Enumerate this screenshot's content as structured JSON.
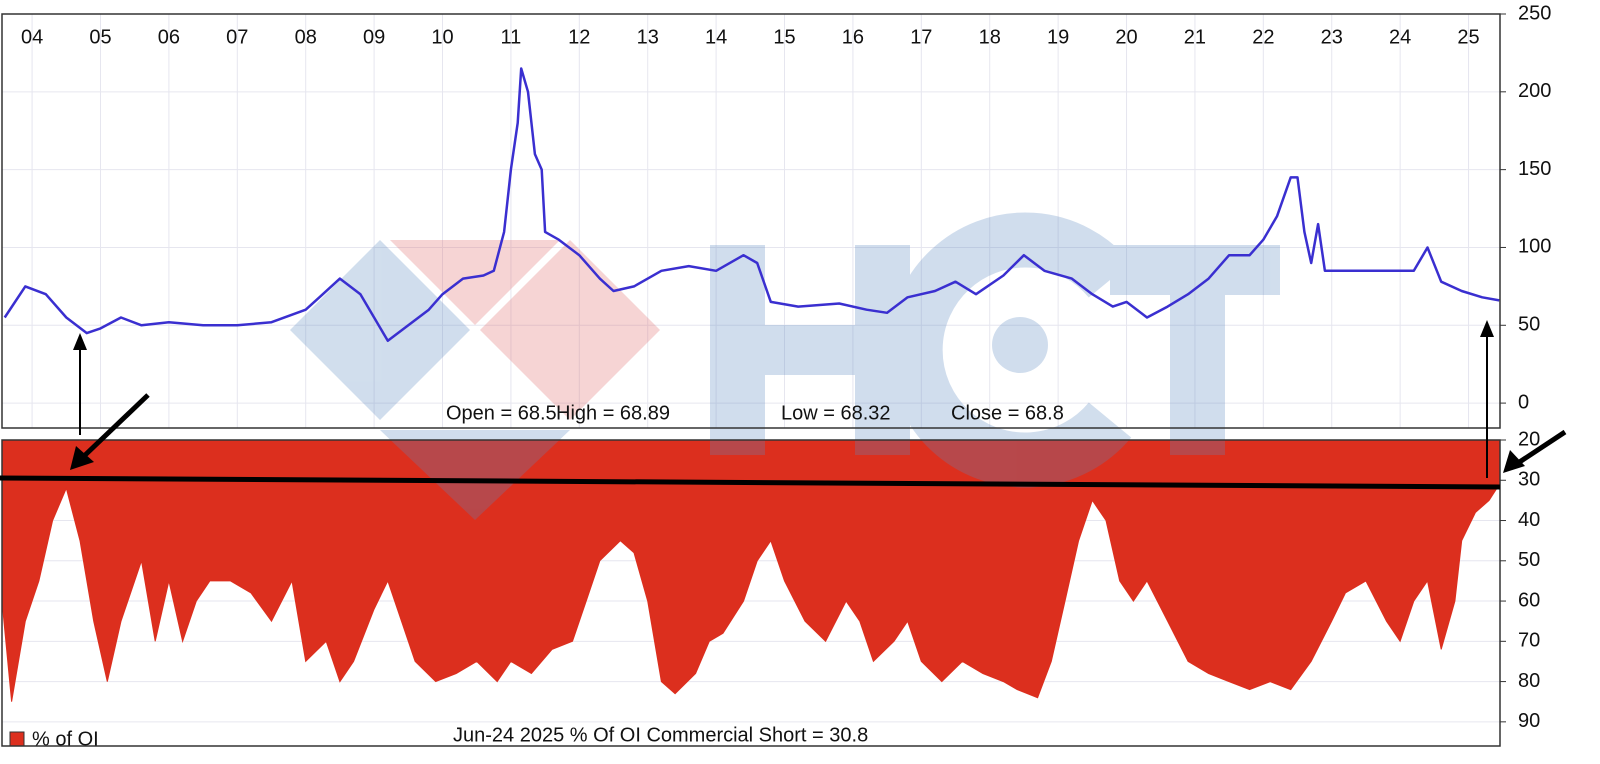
{
  "chart_data": [
    {
      "type": "line",
      "color": "#3a2fd0",
      "xlim": [
        2003.56,
        2025.46
      ],
      "ylim": [
        -16,
        250
      ],
      "xticks": [
        {
          "value": 2004,
          "label": "04"
        },
        {
          "value": 2005,
          "label": "05"
        },
        {
          "value": 2006,
          "label": "06"
        },
        {
          "value": 2007,
          "label": "07"
        },
        {
          "value": 2008,
          "label": "08"
        },
        {
          "value": 2009,
          "label": "09"
        },
        {
          "value": 2010,
          "label": "10"
        },
        {
          "value": 2011,
          "label": "11"
        },
        {
          "value": 2012,
          "label": "12"
        },
        {
          "value": 2013,
          "label": "13"
        },
        {
          "value": 2014,
          "label": "14"
        },
        {
          "value": 2015,
          "label": "15"
        },
        {
          "value": 2016,
          "label": "16"
        },
        {
          "value": 2017,
          "label": "17"
        },
        {
          "value": 2018,
          "label": "18"
        },
        {
          "value": 2019,
          "label": "19"
        },
        {
          "value": 2020,
          "label": "20"
        },
        {
          "value": 2021,
          "label": "21"
        },
        {
          "value": 2022,
          "label": "22"
        },
        {
          "value": 2023,
          "label": "23"
        },
        {
          "value": 2024,
          "label": "24"
        },
        {
          "value": 2025,
          "label": "25"
        }
      ],
      "yticks": [
        0,
        50,
        100,
        150,
        200,
        250
      ],
      "grid": true,
      "annotations": [
        "Open = 68.5",
        "High = 68.89",
        "Low = 68.32",
        "Close = 68.8"
      ],
      "x": [
        2003.6,
        2003.9,
        2004.2,
        2004.5,
        2004.8,
        2005.0,
        2005.3,
        2005.6,
        2006.0,
        2006.5,
        2007.0,
        2007.5,
        2008.0,
        2008.2,
        2008.5,
        2008.8,
        2009.0,
        2009.2,
        2009.5,
        2009.8,
        2010.0,
        2010.3,
        2010.6,
        2010.75,
        2010.9,
        2011.0,
        2011.1,
        2011.15,
        2011.25,
        2011.35,
        2011.45,
        2011.5,
        2011.7,
        2012.0,
        2012.3,
        2012.5,
        2012.8,
        2013.2,
        2013.6,
        2014.0,
        2014.4,
        2014.6,
        2014.8,
        2015.2,
        2015.8,
        2016.2,
        2016.5,
        2016.8,
        2017.2,
        2017.5,
        2017.8,
        2018.2,
        2018.5,
        2018.8,
        2019.2,
        2019.5,
        2019.8,
        2020.0,
        2020.3,
        2020.6,
        2020.9,
        2021.2,
        2021.5,
        2021.8,
        2022.0,
        2022.2,
        2022.4,
        2022.5,
        2022.6,
        2022.7,
        2022.8,
        2022.9,
        2023.2,
        2023.6,
        2023.9,
        2024.2,
        2024.4,
        2024.6,
        2024.9,
        2025.2,
        2025.45
      ],
      "values": [
        55,
        75,
        70,
        55,
        45,
        48,
        55,
        50,
        52,
        50,
        50,
        52,
        60,
        68,
        80,
        70,
        55,
        40,
        50,
        60,
        70,
        80,
        82,
        85,
        110,
        150,
        180,
        215,
        200,
        160,
        150,
        110,
        105,
        95,
        80,
        72,
        75,
        85,
        88,
        85,
        95,
        90,
        65,
        62,
        64,
        60,
        58,
        68,
        72,
        78,
        70,
        82,
        95,
        85,
        80,
        70,
        62,
        65,
        55,
        62,
        70,
        80,
        95,
        95,
        105,
        120,
        145,
        145,
        110,
        90,
        115,
        85,
        85,
        85,
        85,
        85,
        100,
        78,
        72,
        68,
        66
      ]
    },
    {
      "type": "area",
      "inverted": true,
      "xlim": [
        2003.56,
        2025.46
      ],
      "ylim": [
        20,
        96
      ],
      "yticks": [
        20,
        30,
        40,
        50,
        60,
        70,
        80,
        90
      ],
      "grid": true,
      "annotation": "Jun-24  2025   % Of OI Commercial Short = 30.8",
      "x": [
        2003.56,
        2003.7,
        2003.9,
        2004.1,
        2004.3,
        2004.5,
        2004.7,
        2004.9,
        2005.1,
        2005.3,
        2005.6,
        2005.8,
        2006.0,
        2006.2,
        2006.4,
        2006.6,
        2006.9,
        2007.2,
        2007.5,
        2007.8,
        2008.0,
        2008.3,
        2008.5,
        2008.7,
        2009.0,
        2009.2,
        2009.4,
        2009.6,
        2009.9,
        2010.2,
        2010.5,
        2010.8,
        2011.0,
        2011.3,
        2011.6,
        2011.9,
        2012.1,
        2012.3,
        2012.6,
        2012.8,
        2013.0,
        2013.2,
        2013.4,
        2013.7,
        2013.9,
        2014.1,
        2014.4,
        2014.6,
        2014.8,
        2015.0,
        2015.3,
        2015.6,
        2015.9,
        2016.1,
        2016.3,
        2016.6,
        2016.8,
        2017.0,
        2017.3,
        2017.6,
        2017.9,
        2018.2,
        2018.4,
        2018.7,
        2018.9,
        2019.1,
        2019.3,
        2019.5,
        2019.7,
        2019.9,
        2020.1,
        2020.3,
        2020.6,
        2020.9,
        2021.2,
        2021.5,
        2021.8,
        2022.1,
        2022.4,
        2022.7,
        2023.0,
        2023.2,
        2023.5,
        2023.8,
        2024.0,
        2024.2,
        2024.4,
        2024.6,
        2024.8,
        2024.9,
        2025.1,
        2025.3,
        2025.46
      ],
      "series": [
        {
          "name": "% of OI",
          "color": "#dc2f1e",
          "values": [
            60,
            85,
            65,
            55,
            40,
            32,
            45,
            65,
            80,
            65,
            50,
            70,
            55,
            70,
            60,
            55,
            55,
            58,
            65,
            55,
            75,
            70,
            80,
            75,
            62,
            55,
            65,
            75,
            80,
            78,
            75,
            80,
            75,
            78,
            72,
            70,
            60,
            50,
            45,
            48,
            60,
            80,
            83,
            78,
            70,
            68,
            60,
            50,
            45,
            55,
            65,
            70,
            60,
            65,
            75,
            70,
            65,
            75,
            80,
            75,
            78,
            80,
            82,
            84,
            75,
            60,
            45,
            35,
            40,
            55,
            60,
            55,
            65,
            75,
            78,
            80,
            82,
            80,
            82,
            75,
            65,
            58,
            55,
            65,
            70,
            60,
            55,
            72,
            60,
            45,
            38,
            35,
            30.8
          ]
        }
      ]
    }
  ]
}
